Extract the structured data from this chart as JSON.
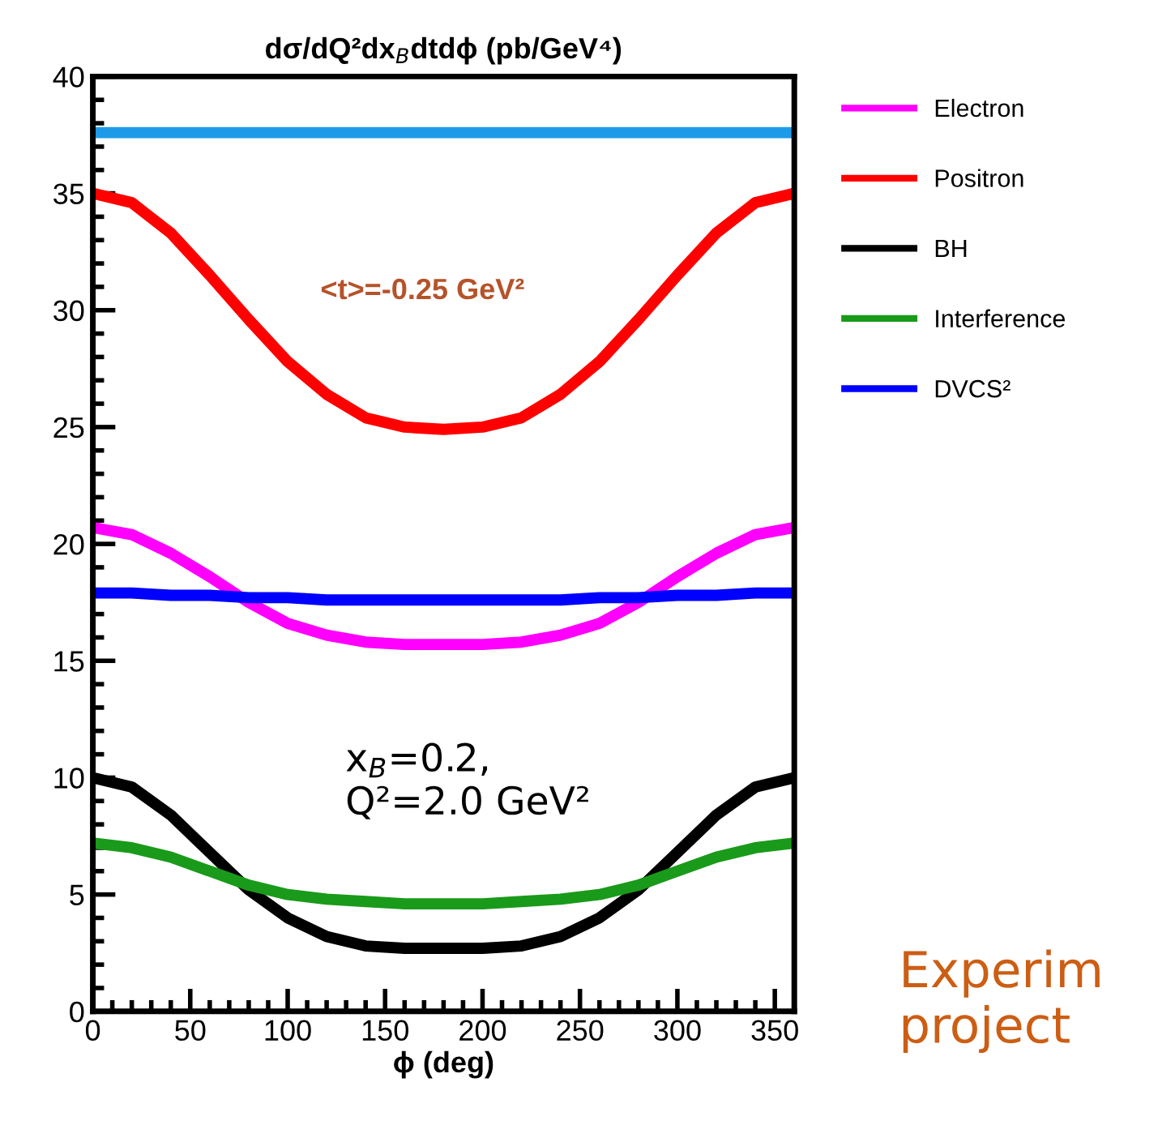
{
  "chart_data": {
    "type": "line",
    "title": "dσ/dQ²dx$_{B}$dtdϕ (pb/GeV⁴)",
    "xlabel": "ϕ (deg)",
    "x": [
      0,
      20,
      40,
      60,
      80,
      100,
      120,
      140,
      160,
      180,
      200,
      220,
      240,
      260,
      280,
      300,
      320,
      340,
      360
    ],
    "series": [
      {
        "color": "#1e9be8",
        "values": [
          37.6,
          37.6,
          37.6,
          37.6,
          37.6,
          37.6,
          37.6,
          37.6,
          37.6,
          37.6,
          37.6,
          37.6,
          37.6,
          37.6,
          37.6,
          37.6,
          37.6,
          37.6,
          37.6
        ]
      },
      {
        "name": "Electron",
        "color": "#ff00ff",
        "values": [
          20.7,
          20.4,
          19.6,
          18.6,
          17.5,
          16.6,
          16.1,
          15.8,
          15.7,
          15.7,
          15.7,
          15.8,
          16.1,
          16.6,
          17.5,
          18.6,
          19.6,
          20.4,
          20.7
        ]
      },
      {
        "name": "Positron",
        "color": "#ff0000",
        "values": [
          35.0,
          34.6,
          33.3,
          31.5,
          29.6,
          27.8,
          26.4,
          25.4,
          25.0,
          24.9,
          25.0,
          25.4,
          26.4,
          27.8,
          29.6,
          31.5,
          33.3,
          34.6,
          35.0
        ]
      },
      {
        "name": "BH",
        "color": "#000000",
        "values": [
          10.0,
          9.6,
          8.4,
          6.8,
          5.2,
          4.0,
          3.2,
          2.8,
          2.7,
          2.7,
          2.7,
          2.8,
          3.2,
          4.0,
          5.2,
          6.8,
          8.4,
          9.6,
          10.0
        ]
      },
      {
        "name": "Interference",
        "color": "#1a9a1a",
        "values": [
          7.2,
          7.0,
          6.6,
          6.0,
          5.4,
          5.0,
          4.8,
          4.7,
          4.6,
          4.6,
          4.6,
          4.7,
          4.8,
          5.0,
          5.4,
          6.0,
          6.6,
          7.0,
          7.2
        ]
      },
      {
        "name": "DVCS²",
        "color": "#0000ff",
        "values": [
          17.9,
          17.9,
          17.8,
          17.8,
          17.7,
          17.7,
          17.6,
          17.6,
          17.6,
          17.6,
          17.6,
          17.6,
          17.6,
          17.7,
          17.7,
          17.8,
          17.8,
          17.9,
          17.9
        ]
      }
    ],
    "xlim": [
      0,
      360
    ],
    "ylim": [
      0,
      40
    ],
    "xticks": [
      0,
      50,
      100,
      150,
      200,
      250,
      300,
      350
    ],
    "yticks": [
      0,
      5,
      10,
      15,
      20,
      25,
      30,
      35,
      40
    ],
    "grid": false,
    "legend": "right",
    "marker": "none",
    "line_style": "solid",
    "annotations": [
      "<t>=-0.25 GeV²",
      "x$_{B}$=0.2,\nQ²=2.0 GeV²",
      "Experim\nproject"
    ]
  }
}
